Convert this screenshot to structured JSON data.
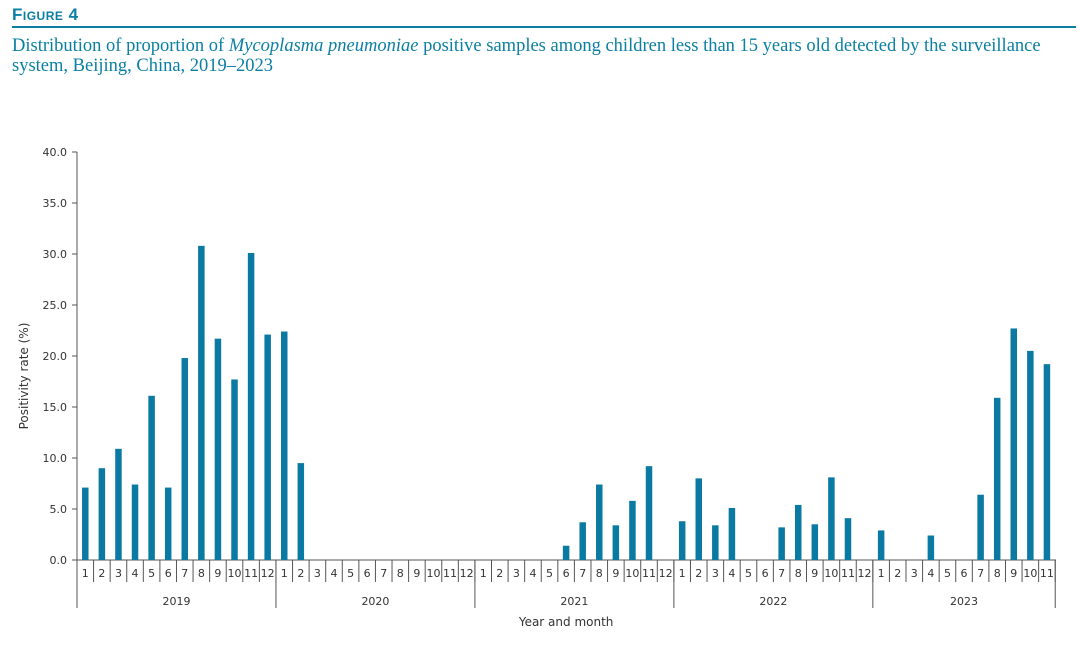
{
  "figure": {
    "label": "Figure 4",
    "title_pre": "Distribution of proportion of ",
    "title_em": "Mycoplasma pneumoniae",
    "title_post": " positive samples among children less than 15 years old detected by the surveillance system, Beijing, China, 2019–2023"
  },
  "colors": {
    "bar": "#0a7aa3",
    "accent": "#0a7fa3",
    "axis": "#555555"
  },
  "chart_data": {
    "type": "bar",
    "xlabel": "Year and month",
    "ylabel": "Positivity rate (%)",
    "ylim": [
      0,
      40
    ],
    "yticks": [
      "0.0",
      "5.0",
      "10.0",
      "15.0",
      "20.0",
      "25.0",
      "30.0",
      "35.0",
      "40.0"
    ],
    "grid": false,
    "years": [
      {
        "year": "2019",
        "months": [
          "1",
          "2",
          "3",
          "4",
          "5",
          "6",
          "7",
          "8",
          "9",
          "10",
          "11",
          "12"
        ],
        "values": [
          7.1,
          9.0,
          10.9,
          7.4,
          16.1,
          7.1,
          19.8,
          30.8,
          21.7,
          17.7,
          30.1,
          22.1
        ]
      },
      {
        "year": "2020",
        "months": [
          "1",
          "2",
          "3",
          "4",
          "5",
          "6",
          "7",
          "8",
          "9",
          "10",
          "11",
          "12"
        ],
        "values": [
          22.4,
          9.5,
          null,
          null,
          null,
          null,
          null,
          null,
          null,
          null,
          null,
          null
        ]
      },
      {
        "year": "2021",
        "months": [
          "1",
          "2",
          "3",
          "4",
          "5",
          "6",
          "7",
          "8",
          "9",
          "10",
          "11",
          "12"
        ],
        "values": [
          null,
          null,
          null,
          null,
          null,
          1.4,
          3.7,
          7.4,
          3.4,
          5.8,
          9.2,
          null
        ]
      },
      {
        "year": "2022",
        "months": [
          "1",
          "2",
          "3",
          "4",
          "5",
          "6",
          "7",
          "8",
          "9",
          "10",
          "11",
          "12"
        ],
        "values": [
          3.8,
          8.0,
          3.4,
          5.1,
          null,
          null,
          3.2,
          5.4,
          3.5,
          8.1,
          4.1,
          null
        ]
      },
      {
        "year": "2023",
        "months": [
          "1",
          "2",
          "3",
          "4",
          "5",
          "6",
          "7",
          "8",
          "9",
          "10",
          "11"
        ],
        "values": [
          2.9,
          null,
          null,
          2.4,
          null,
          null,
          6.4,
          15.9,
          22.7,
          20.5,
          19.2
        ]
      }
    ]
  }
}
